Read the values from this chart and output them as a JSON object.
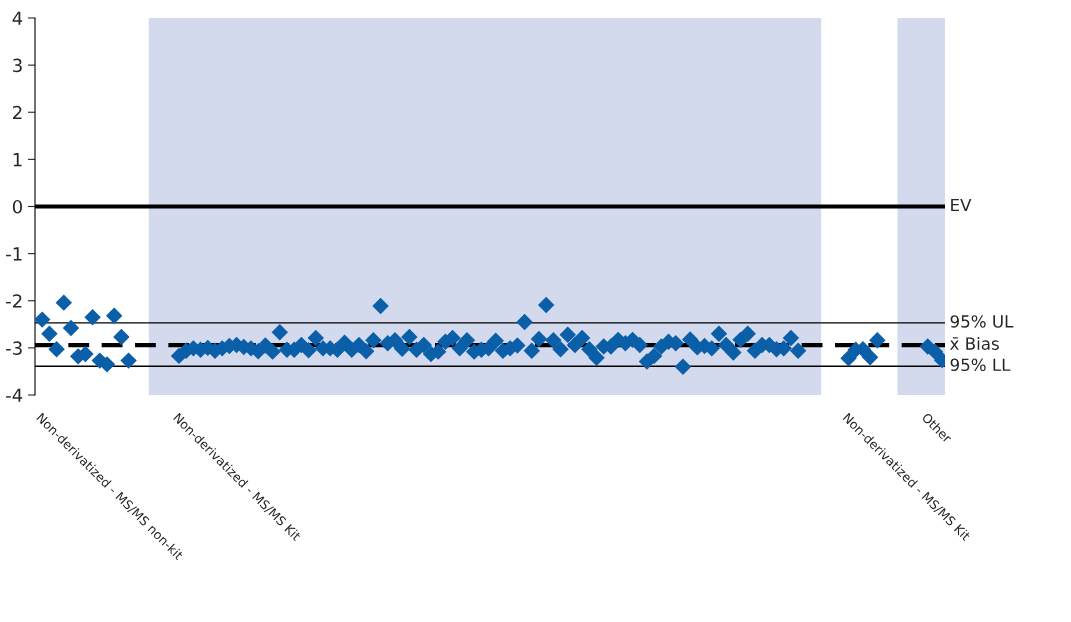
{
  "chart_data": {
    "type": "scatter",
    "ylim": [
      -4,
      4
    ],
    "yticks": [
      -4,
      -3,
      -2,
      -1,
      0,
      1,
      2,
      3,
      4
    ],
    "categories": [
      "Non-derivatized - MS/MS non-kit",
      null,
      null,
      null,
      null,
      null,
      null,
      null,
      null,
      null,
      null,
      null,
      null,
      null,
      null,
      null,
      null,
      null,
      null,
      "Non-derivatized - MS/MS Kit",
      null,
      null,
      null,
      null,
      null,
      null,
      null,
      null,
      null,
      null,
      null,
      null,
      null,
      null,
      null,
      null,
      null,
      null,
      null,
      null,
      null,
      null,
      null,
      null,
      null,
      null,
      null,
      null,
      null,
      null,
      null,
      null,
      null,
      null,
      null,
      null,
      null,
      null,
      null,
      null,
      null,
      null,
      null,
      null,
      null,
      null,
      null,
      null,
      null,
      null,
      null,
      null,
      null,
      null,
      null,
      null,
      null,
      null,
      null,
      null,
      null,
      null,
      null,
      null,
      null,
      null,
      null,
      null,
      null,
      null,
      null,
      null,
      null,
      null,
      null,
      null,
      null,
      null,
      null,
      null,
      null,
      null,
      null,
      null,
      null,
      null,
      null,
      null,
      null,
      null,
      null,
      null,
      "Non-derivatized - MS/MS Kit",
      null,
      null,
      null,
      null,
      null,
      null,
      null,
      null,
      null,
      null,
      "Other",
      null,
      null
    ],
    "marker": "diamond",
    "grid": false,
    "legend": false,
    "ref_lines": [
      {
        "axis": "y",
        "value": 0,
        "label": "EV",
        "line_style": "solid",
        "color": "#000000"
      },
      {
        "axis": "y",
        "value": -2.47,
        "label": "95% UL",
        "line_style": "solid",
        "color": "#000000"
      },
      {
        "axis": "y",
        "value": -2.94,
        "label": "x̄ Bias",
        "line_style": "dashed",
        "color": "#000000"
      },
      {
        "axis": "y",
        "value": -3.39,
        "label": "95% LL",
        "line_style": "solid",
        "color": "#000000"
      }
    ],
    "series": [
      {
        "color": "#0b5ea8",
        "values": [
          -2.4,
          -2.7,
          -3.03,
          -2.04,
          -2.58,
          -3.18,
          -3.13,
          -2.35,
          -3.27,
          -3.35,
          -2.32,
          -2.77,
          -3.27,
          null,
          null,
          null,
          null,
          null,
          null,
          -3.17,
          -3.06,
          -3.01,
          -3.04,
          -3.0,
          -3.06,
          -3.01,
          -2.96,
          -2.94,
          -2.98,
          -3.01,
          -3.07,
          -2.95,
          -3.08,
          -2.67,
          -3.04,
          -3.04,
          -2.94,
          -3.05,
          -2.79,
          -3.01,
          -3.01,
          -3.04,
          -2.89,
          -3.04,
          -2.94,
          -3.07,
          -2.84,
          -2.11,
          -2.9,
          -2.84,
          -3.02,
          -2.77,
          -3.04,
          -2.94,
          -3.13,
          -3.08,
          -2.87,
          -2.79,
          -3.01,
          -2.84,
          -3.08,
          -3.04,
          -3.01,
          -2.85,
          -3.06,
          -3.01,
          -2.95,
          -2.45,
          -3.06,
          -2.81,
          -2.09,
          -2.84,
          -3.03,
          -2.72,
          -2.94,
          -2.79,
          -3.03,
          -3.21,
          -2.97,
          -2.97,
          -2.83,
          -2.9,
          -2.83,
          -2.94,
          -3.29,
          -3.17,
          -2.97,
          -2.87,
          -2.9,
          -3.4,
          -2.82,
          -2.99,
          -2.96,
          -3.01,
          -2.7,
          -2.94,
          -3.1,
          -2.83,
          -2.7,
          -3.06,
          -2.94,
          -2.94,
          -3.03,
          -3.01,
          -2.79,
          -3.06,
          null,
          null,
          null,
          null,
          null,
          null,
          -3.22,
          -3.04,
          -3.03,
          -3.2,
          -2.84,
          null,
          null,
          null,
          null,
          null,
          null,
          -2.97,
          -3.08,
          -3.26
        ]
      }
    ]
  }
}
